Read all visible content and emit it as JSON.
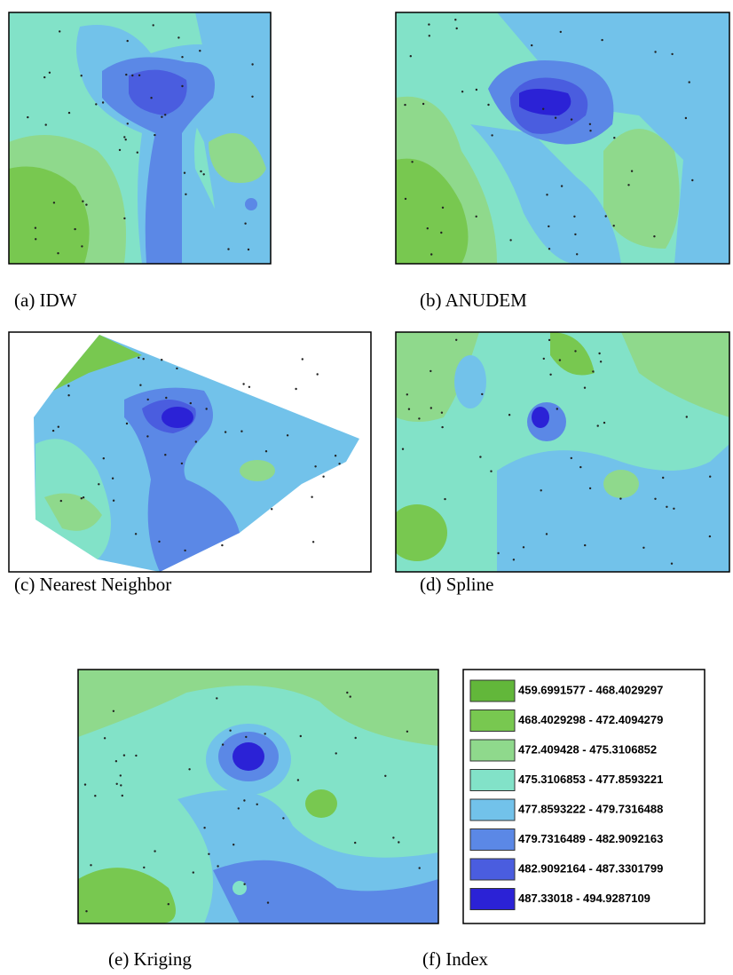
{
  "panels": [
    {
      "caption": "(a) IDW"
    },
    {
      "caption": "(b) ANUDEM"
    },
    {
      "caption": "(c) Nearest Neighbor"
    },
    {
      "caption": "(d) Spline"
    },
    {
      "caption": "(e) Kriging"
    }
  ],
  "legend": {
    "caption": "(f) Index",
    "items": [
      {
        "label": "459.6991577 - 468.4029297",
        "color": "#62b73a"
      },
      {
        "label": "468.4029298 - 472.4094279",
        "color": "#78c850"
      },
      {
        "label": "472.409428 - 475.3106852",
        "color": "#8fd98c"
      },
      {
        "label": "475.3106853 - 477.8593221",
        "color": "#82e2c8"
      },
      {
        "label": "477.8593222 - 479.7316488",
        "color": "#72c2ea"
      },
      {
        "label": "479.7316489 - 482.9092163",
        "color": "#5b88e6"
      },
      {
        "label": "482.9092164 - 487.3301799",
        "color": "#4a5ddf"
      },
      {
        "label": "487.33018 - 494.9287109",
        "color": "#2b22d6"
      }
    ]
  }
}
